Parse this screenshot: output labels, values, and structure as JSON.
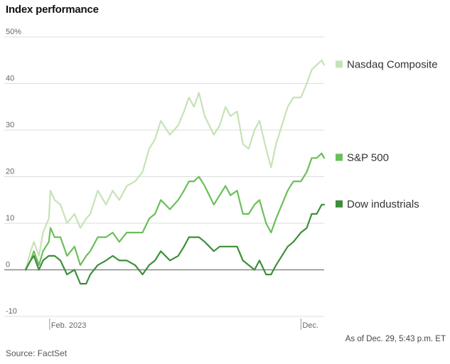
{
  "header": {
    "title": "Index performance"
  },
  "footer": {
    "as_of": "As of Dec. 29, 5:43 p.m. ET",
    "source": "Source: FactSet"
  },
  "colors": {
    "nasdaq": "#c5e3b6",
    "sp500": "#6abf5a",
    "dow": "#3e8e3a",
    "grid": "#dddddd",
    "zero_line": "#888888"
  },
  "chart_data": {
    "type": "line",
    "title": "Index performance",
    "xlabel": "",
    "ylabel": "",
    "ylim": [
      -10,
      50
    ],
    "yticks": [
      {
        "value": 50,
        "label": "50%"
      },
      {
        "value": 40,
        "label": "40"
      },
      {
        "value": 30,
        "label": "30"
      },
      {
        "value": 20,
        "label": "20"
      },
      {
        "value": 10,
        "label": "10"
      },
      {
        "value": 0,
        "label": "0"
      },
      {
        "value": -10,
        "label": "-10"
      }
    ],
    "x_range": [
      "2023-01-03",
      "2023-12-29"
    ],
    "xticks": [
      {
        "date": "2023-02-01",
        "label": "Feb. 2023"
      },
      {
        "date": "2023-12-01",
        "label": "Dec."
      }
    ],
    "legend_placement": "right of lines",
    "series": [
      {
        "name": "Nasdaq Composite",
        "color": "#c5e3b6",
        "points": [
          [
            "2023-01-03",
            0
          ],
          [
            "2023-01-09",
            4
          ],
          [
            "2023-01-13",
            6
          ],
          [
            "2023-01-19",
            3
          ],
          [
            "2023-01-24",
            8
          ],
          [
            "2023-01-31",
            11
          ],
          [
            "2023-02-02",
            17
          ],
          [
            "2023-02-07",
            15
          ],
          [
            "2023-02-14",
            14
          ],
          [
            "2023-02-22",
            10
          ],
          [
            "2023-03-03",
            12
          ],
          [
            "2023-03-10",
            9
          ],
          [
            "2023-03-17",
            11
          ],
          [
            "2023-03-22",
            12
          ],
          [
            "2023-03-31",
            17
          ],
          [
            "2023-04-10",
            14
          ],
          [
            "2023-04-18",
            17
          ],
          [
            "2023-04-26",
            15
          ],
          [
            "2023-05-05",
            18
          ],
          [
            "2023-05-15",
            19
          ],
          [
            "2023-05-24",
            21
          ],
          [
            "2023-06-01",
            26
          ],
          [
            "2023-06-08",
            28
          ],
          [
            "2023-06-15",
            32
          ],
          [
            "2023-06-26",
            29
          ],
          [
            "2023-07-06",
            31
          ],
          [
            "2023-07-13",
            34
          ],
          [
            "2023-07-19",
            37
          ],
          [
            "2023-07-25",
            35
          ],
          [
            "2023-07-31",
            38
          ],
          [
            "2023-08-07",
            33
          ],
          [
            "2023-08-18",
            29
          ],
          [
            "2023-08-25",
            31
          ],
          [
            "2023-09-01",
            35
          ],
          [
            "2023-09-07",
            33
          ],
          [
            "2023-09-15",
            34
          ],
          [
            "2023-09-22",
            27
          ],
          [
            "2023-09-29",
            26
          ],
          [
            "2023-10-06",
            30
          ],
          [
            "2023-10-12",
            32
          ],
          [
            "2023-10-20",
            26
          ],
          [
            "2023-10-26",
            22
          ],
          [
            "2023-11-01",
            27
          ],
          [
            "2023-11-08",
            31
          ],
          [
            "2023-11-15",
            35
          ],
          [
            "2023-11-22",
            37
          ],
          [
            "2023-12-01",
            37
          ],
          [
            "2023-12-08",
            40
          ],
          [
            "2023-12-14",
            43
          ],
          [
            "2023-12-20",
            44
          ],
          [
            "2023-12-26",
            45
          ],
          [
            "2023-12-29",
            44
          ]
        ]
      },
      {
        "name": "S&P 500",
        "color": "#6abf5a",
        "points": [
          [
            "2023-01-03",
            0
          ],
          [
            "2023-01-09",
            2
          ],
          [
            "2023-01-13",
            4
          ],
          [
            "2023-01-19",
            1
          ],
          [
            "2023-01-24",
            4
          ],
          [
            "2023-01-31",
            6
          ],
          [
            "2023-02-02",
            9
          ],
          [
            "2023-02-07",
            7
          ],
          [
            "2023-02-14",
            7
          ],
          [
            "2023-02-22",
            3
          ],
          [
            "2023-03-03",
            5
          ],
          [
            "2023-03-10",
            1
          ],
          [
            "2023-03-17",
            3
          ],
          [
            "2023-03-22",
            4
          ],
          [
            "2023-03-31",
            7
          ],
          [
            "2023-04-10",
            7
          ],
          [
            "2023-04-18",
            8
          ],
          [
            "2023-04-26",
            6
          ],
          [
            "2023-05-05",
            8
          ],
          [
            "2023-05-15",
            8
          ],
          [
            "2023-05-24",
            8
          ],
          [
            "2023-06-01",
            11
          ],
          [
            "2023-06-08",
            12
          ],
          [
            "2023-06-15",
            15
          ],
          [
            "2023-06-26",
            13
          ],
          [
            "2023-07-06",
            15
          ],
          [
            "2023-07-13",
            17
          ],
          [
            "2023-07-19",
            19
          ],
          [
            "2023-07-25",
            19
          ],
          [
            "2023-07-31",
            20
          ],
          [
            "2023-08-07",
            18
          ],
          [
            "2023-08-18",
            14
          ],
          [
            "2023-08-25",
            16
          ],
          [
            "2023-09-01",
            18
          ],
          [
            "2023-09-07",
            16
          ],
          [
            "2023-09-15",
            17
          ],
          [
            "2023-09-22",
            12
          ],
          [
            "2023-09-29",
            12
          ],
          [
            "2023-10-06",
            14
          ],
          [
            "2023-10-12",
            15
          ],
          [
            "2023-10-20",
            10
          ],
          [
            "2023-10-26",
            8
          ],
          [
            "2023-11-01",
            11
          ],
          [
            "2023-11-08",
            14
          ],
          [
            "2023-11-15",
            17
          ],
          [
            "2023-11-22",
            19
          ],
          [
            "2023-12-01",
            19
          ],
          [
            "2023-12-08",
            21
          ],
          [
            "2023-12-14",
            24
          ],
          [
            "2023-12-20",
            24
          ],
          [
            "2023-12-26",
            25
          ],
          [
            "2023-12-29",
            24
          ]
        ]
      },
      {
        "name": "Dow industrials",
        "color": "#3e8e3a",
        "points": [
          [
            "2023-01-03",
            0
          ],
          [
            "2023-01-09",
            2
          ],
          [
            "2023-01-13",
            3
          ],
          [
            "2023-01-19",
            0
          ],
          [
            "2023-01-24",
            2
          ],
          [
            "2023-01-31",
            3
          ],
          [
            "2023-02-02",
            3
          ],
          [
            "2023-02-07",
            3
          ],
          [
            "2023-02-14",
            2
          ],
          [
            "2023-02-22",
            -1
          ],
          [
            "2023-03-03",
            0
          ],
          [
            "2023-03-10",
            -3
          ],
          [
            "2023-03-17",
            -3
          ],
          [
            "2023-03-22",
            -1
          ],
          [
            "2023-03-31",
            1
          ],
          [
            "2023-04-10",
            2
          ],
          [
            "2023-04-18",
            3
          ],
          [
            "2023-04-26",
            2
          ],
          [
            "2023-05-05",
            2
          ],
          [
            "2023-05-15",
            1
          ],
          [
            "2023-05-24",
            -1
          ],
          [
            "2023-06-01",
            1
          ],
          [
            "2023-06-08",
            2
          ],
          [
            "2023-06-15",
            4
          ],
          [
            "2023-06-26",
            2
          ],
          [
            "2023-07-06",
            3
          ],
          [
            "2023-07-13",
            5
          ],
          [
            "2023-07-19",
            7
          ],
          [
            "2023-07-25",
            7
          ],
          [
            "2023-07-31",
            7
          ],
          [
            "2023-08-07",
            6
          ],
          [
            "2023-08-18",
            4
          ],
          [
            "2023-08-25",
            5
          ],
          [
            "2023-09-01",
            5
          ],
          [
            "2023-09-07",
            5
          ],
          [
            "2023-09-15",
            5
          ],
          [
            "2023-09-22",
            2
          ],
          [
            "2023-09-29",
            1
          ],
          [
            "2023-10-06",
            0
          ],
          [
            "2023-10-12",
            2
          ],
          [
            "2023-10-20",
            -1
          ],
          [
            "2023-10-26",
            -1
          ],
          [
            "2023-11-01",
            1
          ],
          [
            "2023-11-08",
            3
          ],
          [
            "2023-11-15",
            5
          ],
          [
            "2023-11-22",
            6
          ],
          [
            "2023-12-01",
            8
          ],
          [
            "2023-12-08",
            9
          ],
          [
            "2023-12-14",
            12
          ],
          [
            "2023-12-20",
            12
          ],
          [
            "2023-12-26",
            14
          ],
          [
            "2023-12-29",
            14
          ]
        ]
      }
    ]
  }
}
